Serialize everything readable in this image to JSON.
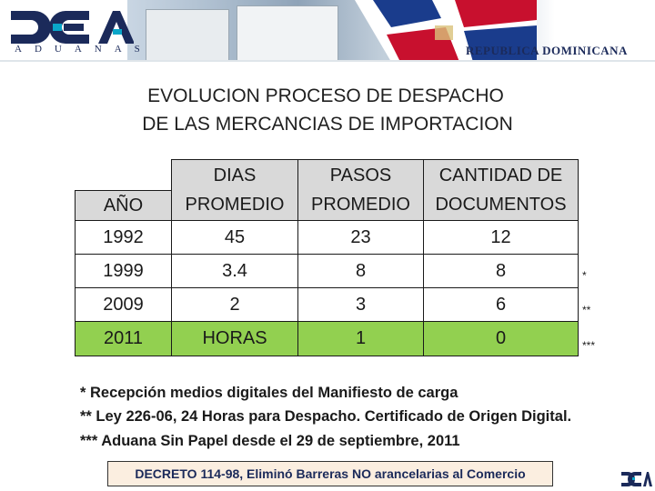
{
  "banner": {
    "logo_text": "ADUANAS",
    "country": "REPUBLICA DOMINICANA"
  },
  "title": {
    "line1": "EVOLUCION PROCESO DE DESPACHO",
    "line2": "DE LAS MERCANCIAS DE IMPORTACION"
  },
  "table": {
    "headers": [
      {
        "line1": "",
        "line2": "AÑO"
      },
      {
        "line1": "DIAS",
        "line2": "PROMEDIO"
      },
      {
        "line1": "PASOS",
        "line2": "PROMEDIO"
      },
      {
        "line1": "CANTIDAD DE",
        "line2": "DOCUMENTOS"
      }
    ],
    "rows": [
      {
        "year": "1992",
        "dias": "45",
        "pasos": "23",
        "docs": "12",
        "mark": ""
      },
      {
        "year": "1999",
        "dias": "3.4",
        "pasos": "8",
        "docs": "8",
        "mark": "*"
      },
      {
        "year": "2009",
        "dias": "2",
        "pasos": "3",
        "docs": "6",
        "mark": "**"
      },
      {
        "year": "2011",
        "dias": "HORAS",
        "pasos": "1",
        "docs": "0",
        "mark": "***"
      }
    ],
    "highlight_color": "#92d050",
    "header_color": "#d9d9d9"
  },
  "notes": [
    "*  Recepción medios digitales del Manifiesto de carga",
    "**  Ley 226-06, 24 Horas para Despacho. Certificado de Origen Digital.",
    "*** Aduana Sin Papel desde el 29 de septiembre, 2011"
  ],
  "decree": "DECRETO 114-98, Eliminó Barreras NO arancelarias al Comercio"
}
